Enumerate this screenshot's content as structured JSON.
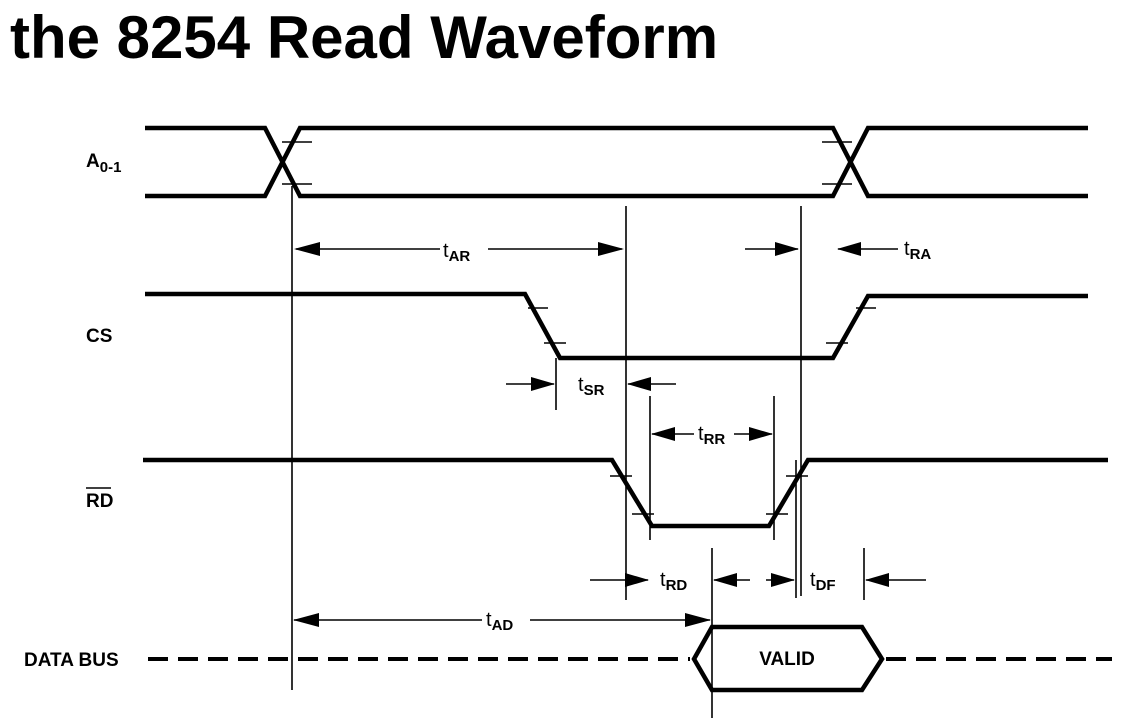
{
  "title": "the 8254 Read Waveform",
  "signals": {
    "a01": {
      "main": "A",
      "sub": "0-1"
    },
    "cs": "CS",
    "rd": "RD",
    "data_bus": "DATA BUS"
  },
  "timings": {
    "tar": {
      "t": "t",
      "sub": "AR"
    },
    "tra": {
      "t": "t",
      "sub": "RA"
    },
    "tsr": {
      "t": "t",
      "sub": "SR"
    },
    "trr": {
      "t": "t",
      "sub": "RR"
    },
    "trd": {
      "t": "t",
      "sub": "RD"
    },
    "tdf": {
      "t": "t",
      "sub": "DF"
    },
    "tad": {
      "t": "t",
      "sub": "AD"
    }
  },
  "valid_label": "VALID"
}
